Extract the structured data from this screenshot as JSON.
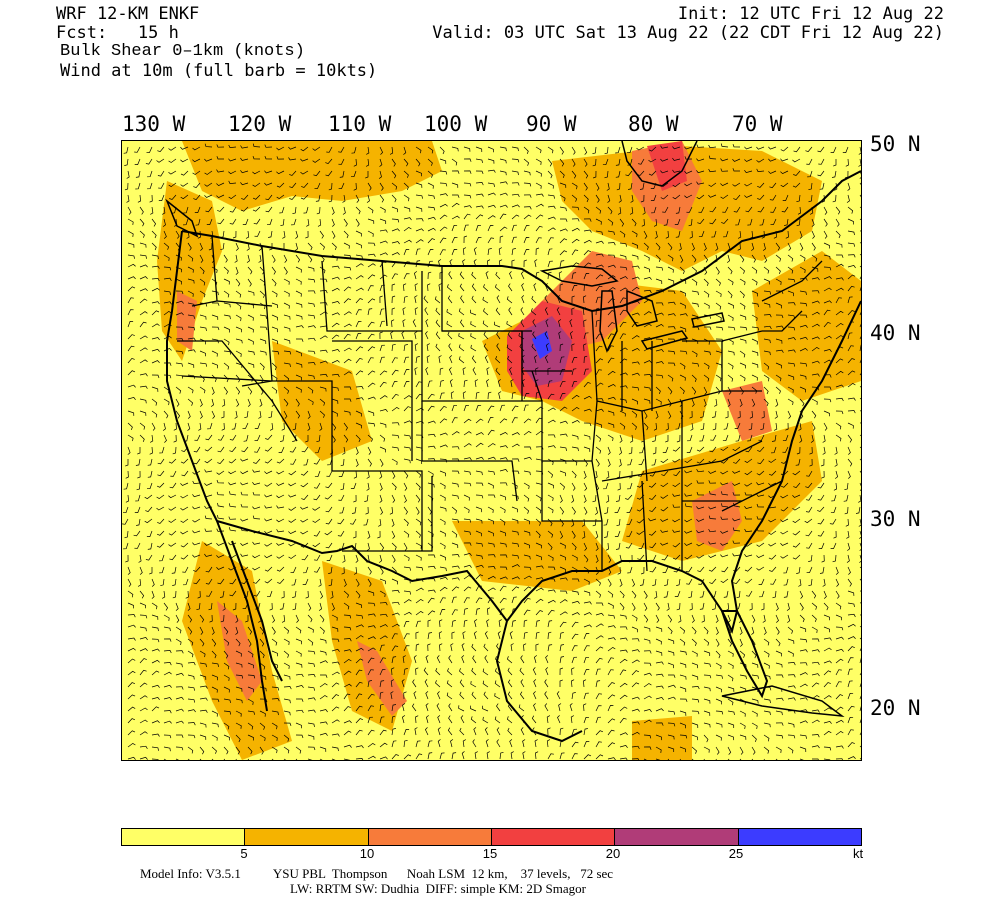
{
  "header": {
    "model_title": "WRF 12-KM ENKF",
    "forecast_hour": "Fcst:   15 h",
    "field_name": "Bulk Shear 0–1km (knots)",
    "wind_label": "Wind at 10m (full barb = 10kts)",
    "init_time": "Init: 12 UTC Fri 12 Aug 22",
    "valid_time": "Valid: 03 UTC Sat 13 Aug 22 (22 CDT Fri 12 Aug 22)"
  },
  "longitude_labels": [
    "130 W",
    "120 W",
    "110 W",
    "100 W",
    "90 W",
    "80 W",
    "70 W"
  ],
  "latitude_labels": [
    "50 N",
    "40 N",
    "30 N",
    "20 N"
  ],
  "colorbar": {
    "colors": [
      "#ffff66",
      "#f5b300",
      "#f77b3a",
      "#f24040",
      "#b03c78",
      "#3c3cff"
    ],
    "tick_labels": [
      "5",
      "10",
      "15",
      "20",
      "25"
    ],
    "unit": "kt"
  },
  "shading_colors": {
    "land_bg": "#ffff66",
    "ocean_bg": "#ffff66",
    "c5": "#f5b300",
    "c10": "#f77b3a",
    "c15": "#f24040",
    "c20": "#b03c78",
    "c25": "#3c3cff"
  },
  "footer": {
    "line1": "Model Info: V3.5.1          YSU PBL  Thompson      Noah LSM  12 km,    37 levels,   72 sec",
    "line2": "LW: RRTM SW: Dudhia  DIFF: simple KM: 2D Smagor"
  }
}
